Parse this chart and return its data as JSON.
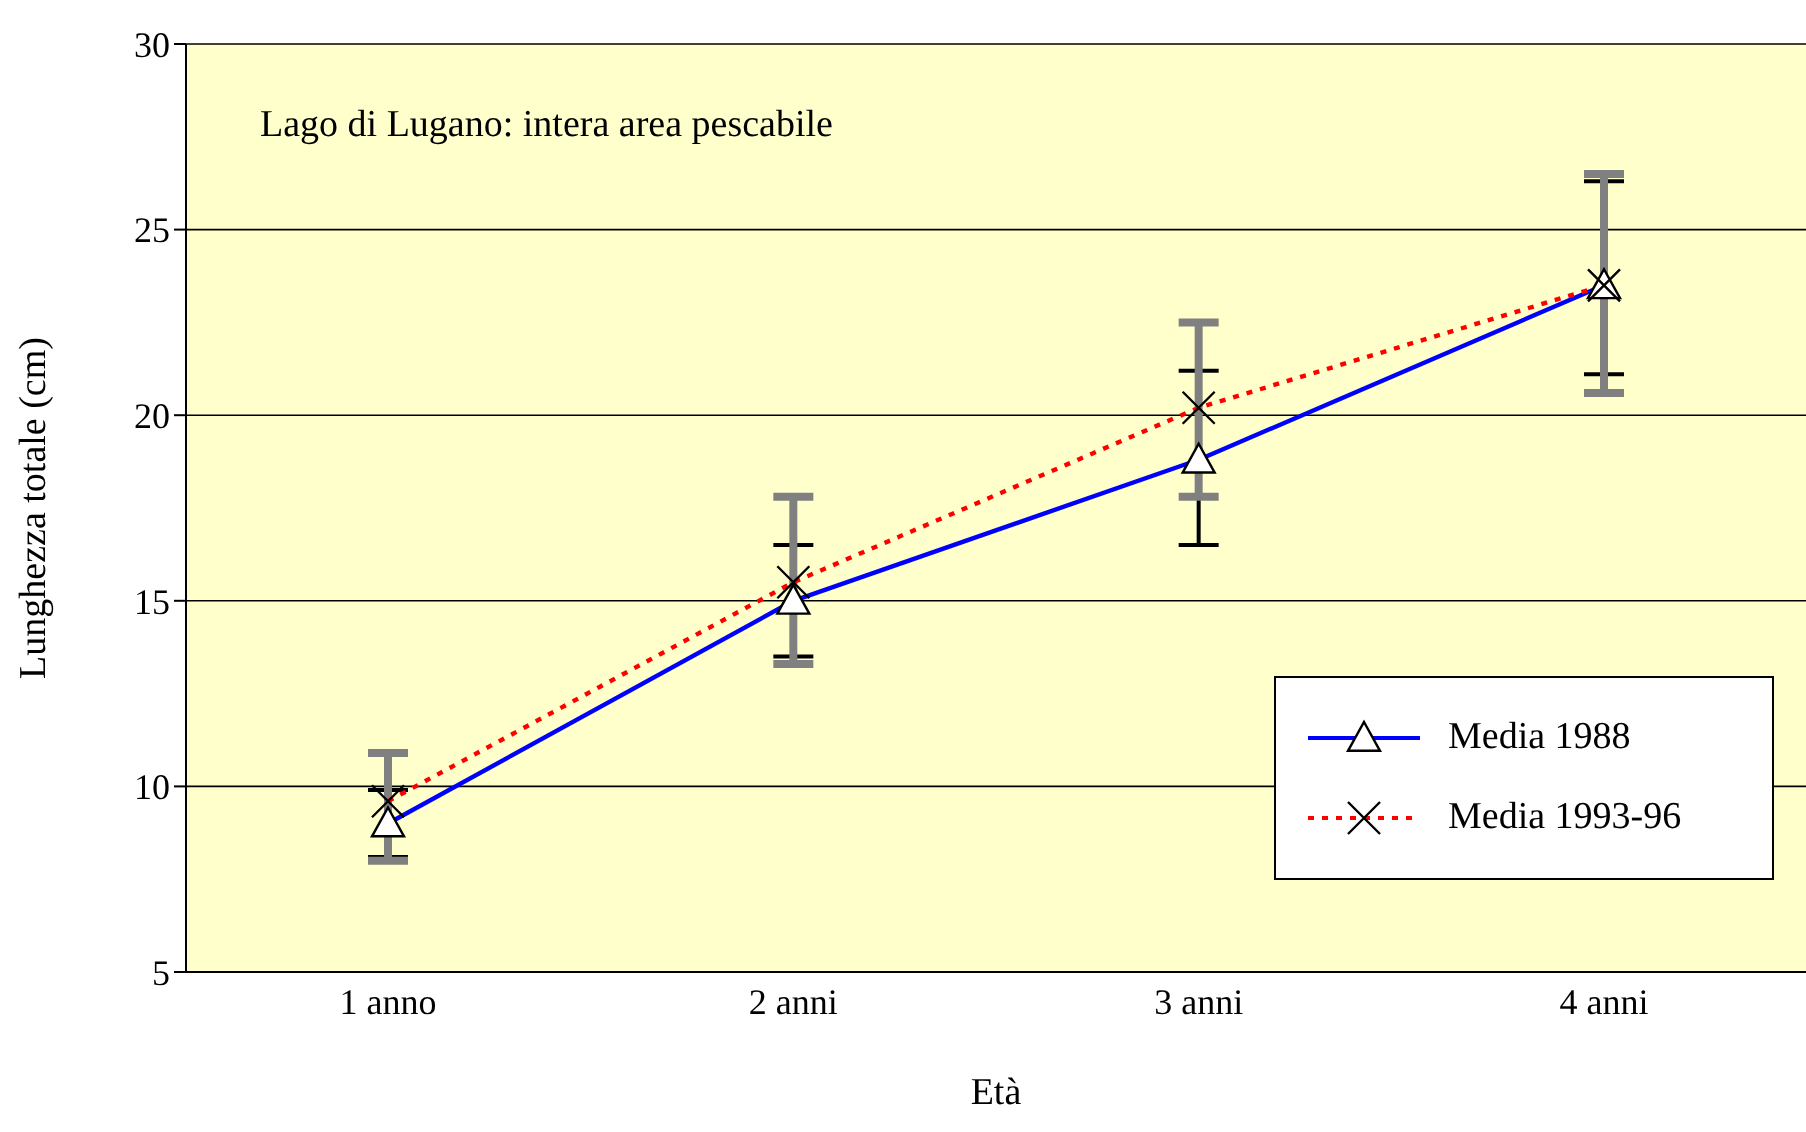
{
  "chart_data": {
    "type": "line",
    "xlabel": "Età",
    "ylabel": "Lunghezza totale  (cm)",
    "annotations": [
      "Lago di Lugano: intera area pescabile"
    ],
    "categories": [
      "1 anno",
      "2 anni",
      "3 anni",
      "4 anni"
    ],
    "series": [
      {
        "name": "Media 1988",
        "color": "#0000ff",
        "marker": "triangle",
        "line_style": "solid",
        "values": [
          9.0,
          15.0,
          18.8,
          23.5
        ],
        "errors": [
          [
            8.1,
            9.9
          ],
          [
            13.5,
            16.5
          ],
          [
            16.5,
            21.2
          ],
          [
            21.1,
            26.3
          ]
        ]
      },
      {
        "name": "Media 1993-96",
        "color": "#ff0000",
        "marker": "cross",
        "line_style": "dotted",
        "values": [
          9.6,
          15.5,
          20.2,
          23.5
        ],
        "errors": [
          [
            8.0,
            10.9
          ],
          [
            13.3,
            17.8
          ],
          [
            17.8,
            22.5
          ],
          [
            20.6,
            26.5
          ]
        ]
      }
    ],
    "ylim": [
      5,
      30
    ],
    "yticks": [
      5,
      10,
      15,
      20,
      25,
      30
    ],
    "grid": "y",
    "legend": "bottom right"
  }
}
